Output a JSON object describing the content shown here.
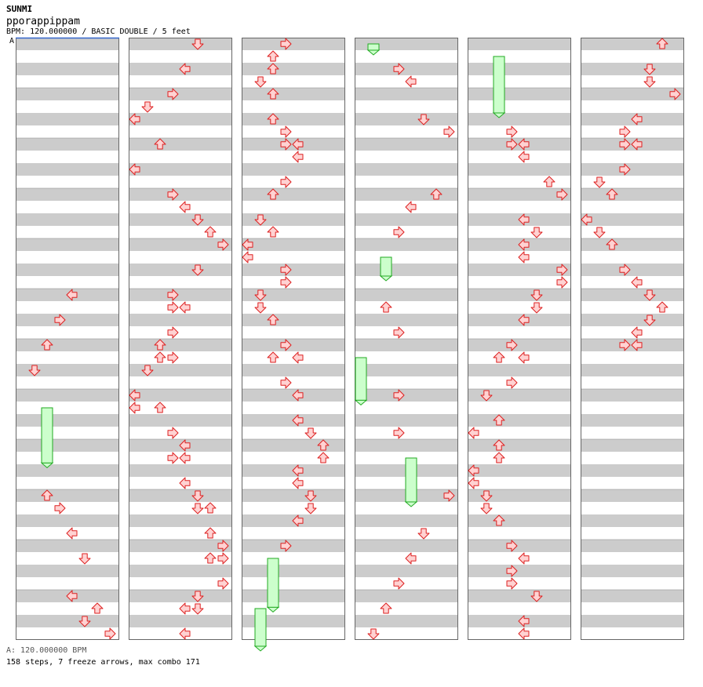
{
  "header": {
    "artist": "SUNMI",
    "title": "pporappippam",
    "info": "BPM: 120.000000 / BASIC DOUBLE / 5 feet",
    "bpm_marker": "A"
  },
  "footer": {
    "bpm_legend": "A: 120.000000 BPM",
    "summary": "158 steps, 7 freeze arrows, max combo 171"
  },
  "colors": {
    "stripe": "#cccccc",
    "background": "#ffffff",
    "border": "#666666",
    "arrow_fill": "#ffd2d2",
    "arrow_stroke": "#dd2020",
    "freeze_fill": "#ccffcc",
    "freeze_stroke": "#22aa22",
    "bpm_line": "#3366cc"
  },
  "chart_data": {
    "type": "step-chart",
    "mode": "BASIC DOUBLE",
    "columns": 6,
    "measures_per_column": 12,
    "rows_per_measure": 4,
    "lanes": [
      "L1",
      "D1",
      "U1",
      "R1",
      "L2",
      "D2",
      "U2",
      "R2"
    ],
    "freezes": [
      {
        "col": 0,
        "start": 29.0,
        "end": 33.4,
        "lane": 2
      },
      {
        "col": 2,
        "start": 41.0,
        "end": 44.9,
        "lane": 2
      },
      {
        "col": 2,
        "start": 45.0,
        "end": 48.5,
        "lane": 1
      },
      {
        "col": 3,
        "start": 0.0,
        "end": 0.5,
        "lane": 1
      },
      {
        "col": 3,
        "start": 17.0,
        "end": 18.5,
        "lane": 2
      },
      {
        "col": 3,
        "start": 25.0,
        "end": 28.4,
        "lane": 0
      },
      {
        "col": 3,
        "start": 33.0,
        "end": 36.5,
        "lane": 4
      },
      {
        "col": 4,
        "start": 1.0,
        "end": 5.5,
        "lane": 2
      }
    ],
    "arrows": [
      [
        0,
        20,
        4
      ],
      [
        0,
        22,
        3
      ],
      [
        0,
        24,
        2
      ],
      [
        0,
        26,
        1
      ],
      [
        0,
        36,
        2
      ],
      [
        0,
        37,
        3
      ],
      [
        0,
        39,
        4
      ],
      [
        0,
        41,
        5
      ],
      [
        0,
        44,
        4
      ],
      [
        0,
        45,
        6
      ],
      [
        0,
        46,
        5
      ],
      [
        0,
        47,
        7
      ],
      [
        1,
        0,
        5
      ],
      [
        1,
        2,
        4
      ],
      [
        1,
        4,
        3
      ],
      [
        1,
        5,
        1
      ],
      [
        1,
        6,
        0
      ],
      [
        1,
        8,
        2
      ],
      [
        1,
        10,
        0
      ],
      [
        1,
        12,
        3
      ],
      [
        1,
        13,
        4
      ],
      [
        1,
        14,
        5
      ],
      [
        1,
        15,
        6
      ],
      [
        1,
        16,
        7
      ],
      [
        1,
        18,
        5
      ],
      [
        1,
        20,
        3
      ],
      [
        1,
        21,
        3
      ],
      [
        1,
        21,
        4
      ],
      [
        1,
        23,
        3
      ],
      [
        1,
        24,
        2
      ],
      [
        1,
        25,
        2
      ],
      [
        1,
        25,
        3
      ],
      [
        1,
        26,
        1
      ],
      [
        1,
        28,
        0
      ],
      [
        1,
        29,
        0
      ],
      [
        1,
        29,
        2
      ],
      [
        1,
        31,
        3
      ],
      [
        1,
        32,
        4
      ],
      [
        1,
        33,
        3
      ],
      [
        1,
        33,
        4
      ],
      [
        1,
        35,
        4
      ],
      [
        1,
        36,
        5
      ],
      [
        1,
        37,
        5
      ],
      [
        1,
        37,
        6
      ],
      [
        1,
        39,
        6
      ],
      [
        1,
        40,
        7
      ],
      [
        1,
        41,
        6
      ],
      [
        1,
        41,
        7
      ],
      [
        1,
        43,
        7
      ],
      [
        1,
        44,
        5
      ],
      [
        1,
        45,
        4
      ],
      [
        1,
        45,
        5
      ],
      [
        1,
        47,
        4
      ],
      [
        2,
        0,
        3
      ],
      [
        2,
        1,
        2
      ],
      [
        2,
        2,
        2
      ],
      [
        2,
        3,
        1
      ],
      [
        2,
        4,
        2
      ],
      [
        2,
        6,
        2
      ],
      [
        2,
        7,
        3
      ],
      [
        2,
        8,
        3
      ],
      [
        2,
        8,
        4
      ],
      [
        2,
        9,
        4
      ],
      [
        2,
        11,
        3
      ],
      [
        2,
        12,
        2
      ],
      [
        2,
        14,
        1
      ],
      [
        2,
        15,
        2
      ],
      [
        2,
        16,
        0
      ],
      [
        2,
        17,
        0
      ],
      [
        2,
        18,
        3
      ],
      [
        2,
        19,
        3
      ],
      [
        2,
        20,
        1
      ],
      [
        2,
        21,
        1
      ],
      [
        2,
        22,
        2
      ],
      [
        2,
        24,
        3
      ],
      [
        2,
        25,
        2
      ],
      [
        2,
        25,
        4
      ],
      [
        2,
        27,
        3
      ],
      [
        2,
        28,
        4
      ],
      [
        2,
        30,
        4
      ],
      [
        2,
        31,
        5
      ],
      [
        2,
        32,
        6
      ],
      [
        2,
        33,
        6
      ],
      [
        2,
        34,
        4
      ],
      [
        2,
        35,
        4
      ],
      [
        2,
        36,
        5
      ],
      [
        2,
        37,
        5
      ],
      [
        2,
        38,
        4
      ],
      [
        2,
        40,
        3
      ],
      [
        3,
        2,
        3
      ],
      [
        3,
        3,
        4
      ],
      [
        3,
        6,
        5
      ],
      [
        3,
        7,
        7
      ],
      [
        3,
        12,
        6
      ],
      [
        3,
        13,
        4
      ],
      [
        3,
        15,
        3
      ],
      [
        3,
        21,
        2
      ],
      [
        3,
        23,
        3
      ],
      [
        3,
        28,
        3
      ],
      [
        3,
        31,
        3
      ],
      [
        3,
        36,
        7
      ],
      [
        3,
        39,
        5
      ],
      [
        3,
        41,
        4
      ],
      [
        3,
        43,
        3
      ],
      [
        3,
        45,
        2
      ],
      [
        3,
        47,
        1
      ],
      [
        4,
        7,
        3
      ],
      [
        4,
        8,
        3
      ],
      [
        4,
        8,
        4
      ],
      [
        4,
        9,
        4
      ],
      [
        4,
        11,
        6
      ],
      [
        4,
        12,
        7
      ],
      [
        4,
        14,
        4
      ],
      [
        4,
        15,
        5
      ],
      [
        4,
        16,
        4
      ],
      [
        4,
        17,
        4
      ],
      [
        4,
        18,
        7
      ],
      [
        4,
        19,
        7
      ],
      [
        4,
        20,
        5
      ],
      [
        4,
        21,
        5
      ],
      [
        4,
        22,
        4
      ],
      [
        4,
        24,
        3
      ],
      [
        4,
        25,
        2
      ],
      [
        4,
        25,
        4
      ],
      [
        4,
        27,
        3
      ],
      [
        4,
        28,
        1
      ],
      [
        4,
        30,
        2
      ],
      [
        4,
        31,
        0
      ],
      [
        4,
        32,
        2
      ],
      [
        4,
        33,
        2
      ],
      [
        4,
        34,
        0
      ],
      [
        4,
        35,
        0
      ],
      [
        4,
        36,
        1
      ],
      [
        4,
        37,
        1
      ],
      [
        4,
        38,
        2
      ],
      [
        4,
        40,
        3
      ],
      [
        4,
        41,
        4
      ],
      [
        4,
        42,
        3
      ],
      [
        4,
        43,
        3
      ],
      [
        4,
        44,
        5
      ],
      [
        4,
        46,
        4
      ],
      [
        4,
        47,
        4
      ],
      [
        5,
        0,
        6
      ],
      [
        5,
        2,
        5
      ],
      [
        5,
        3,
        5
      ],
      [
        5,
        4,
        7
      ],
      [
        5,
        6,
        4
      ],
      [
        5,
        7,
        3
      ],
      [
        5,
        8,
        3
      ],
      [
        5,
        8,
        4
      ],
      [
        5,
        10,
        3
      ],
      [
        5,
        11,
        1
      ],
      [
        5,
        12,
        2
      ],
      [
        5,
        14,
        0
      ],
      [
        5,
        15,
        1
      ],
      [
        5,
        16,
        2
      ],
      [
        5,
        18,
        3
      ],
      [
        5,
        19,
        4
      ],
      [
        5,
        20,
        5
      ],
      [
        5,
        21,
        6
      ],
      [
        5,
        22,
        5
      ],
      [
        5,
        23,
        4
      ],
      [
        5,
        24,
        3
      ],
      [
        5,
        24,
        4
      ]
    ]
  }
}
